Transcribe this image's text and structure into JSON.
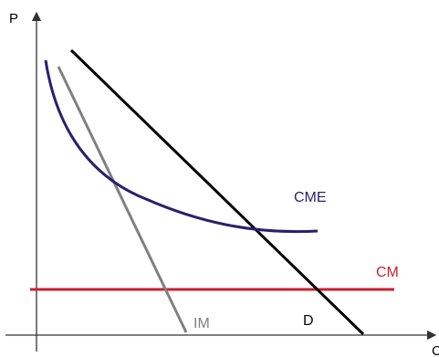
{
  "axes": {
    "y_label": "P",
    "x_label": "C"
  },
  "curves": {
    "cme": {
      "label": "CME",
      "color": "#2b1f6e"
    },
    "cm": {
      "label": "CM",
      "color": "#cc1f2d"
    },
    "im": {
      "label": "IM",
      "color": "#808080"
    },
    "d": {
      "label": "D",
      "color": "#000000"
    }
  }
}
